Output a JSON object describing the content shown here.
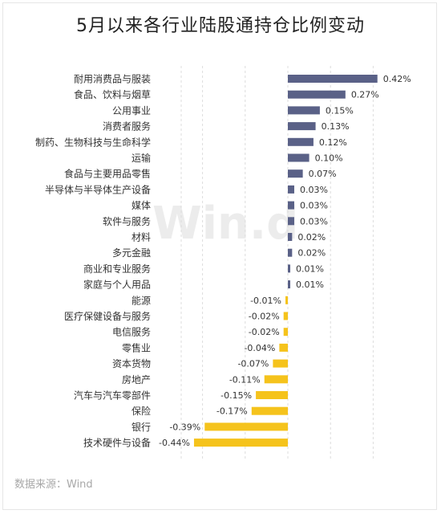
{
  "title": "5月以来各行业陆股通持仓比例变动",
  "watermark": "Win.d",
  "source": "数据来源：Wind",
  "colors": {
    "positive": "#5a6187",
    "negative": "#f5c31c",
    "grid": "#dcdcdc"
  },
  "chart_data": {
    "type": "bar",
    "orientation": "horizontal",
    "title": "5月以来各行业陆股通持仓比例变动",
    "xlim": [
      -0.5,
      0.5
    ],
    "grid": true,
    "categories": [
      "耐用消费品与服装",
      "食品、饮料与烟草",
      "公用事业",
      "消费者服务",
      "制药、生物科技与生命科学",
      "运输",
      "食品与主要用品零售",
      "半导体与半导体生产设备",
      "媒体",
      "软件与服务",
      "材料",
      "多元金融",
      "商业和专业服务",
      "家庭与个人用品",
      "能源",
      "医疗保健设备与服务",
      "电信服务",
      "零售业",
      "资本货物",
      "房地产",
      "汽车与汽车零部件",
      "保险",
      "银行",
      "技术硬件与设备"
    ],
    "values": [
      0.42,
      0.27,
      0.15,
      0.13,
      0.12,
      0.1,
      0.07,
      0.03,
      0.03,
      0.03,
      0.02,
      0.02,
      0.01,
      0.01,
      -0.01,
      -0.02,
      -0.02,
      -0.04,
      -0.07,
      -0.11,
      -0.15,
      -0.17,
      -0.39,
      -0.44
    ],
    "value_labels": [
      "0.42%",
      "0.27%",
      "0.15%",
      "0.13%",
      "0.12%",
      "0.10%",
      "0.07%",
      "0.03%",
      "0.03%",
      "0.03%",
      "0.02%",
      "0.02%",
      "0.01%",
      "0.01%",
      "-0.01%",
      "-0.02%",
      "-0.02%",
      "-0.04%",
      "-0.07%",
      "-0.11%",
      "-0.15%",
      "-0.17%",
      "-0.39%",
      "-0.44%"
    ]
  }
}
